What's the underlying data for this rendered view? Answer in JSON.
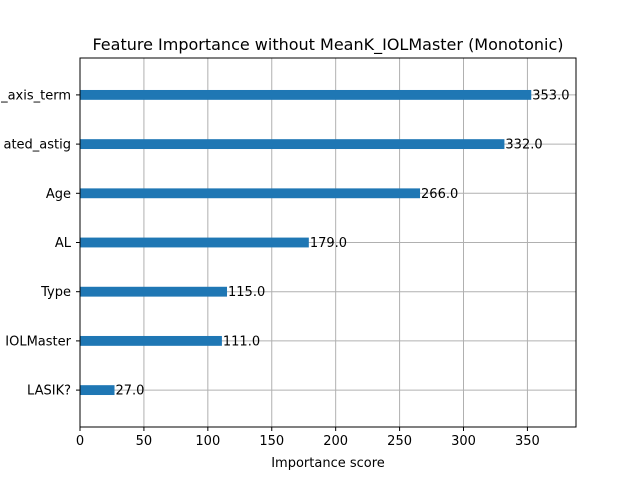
{
  "chart_data": {
    "type": "bar",
    "orientation": "horizontal",
    "title": "Feature Importance without MeanK_IOLMaster (Monotonic)",
    "xlabel": "Importance score",
    "ylabel": "",
    "xlim": [
      0,
      388
    ],
    "x_ticks": [
      0,
      50,
      100,
      150,
      200,
      250,
      300,
      350
    ],
    "grid": true,
    "bar_color": "#1f77b4",
    "categories": [
      "LASIK?",
      "IOLMaster",
      "Type",
      "AL",
      "Age",
      "ated_astig",
      "_axis_term"
    ],
    "values": [
      27.0,
      111.0,
      115.0,
      179.0,
      266.0,
      332.0,
      353.0
    ],
    "value_labels": [
      "27.0",
      "111.0",
      "115.0",
      "179.0",
      "266.0",
      "332.0",
      "353.0"
    ]
  }
}
